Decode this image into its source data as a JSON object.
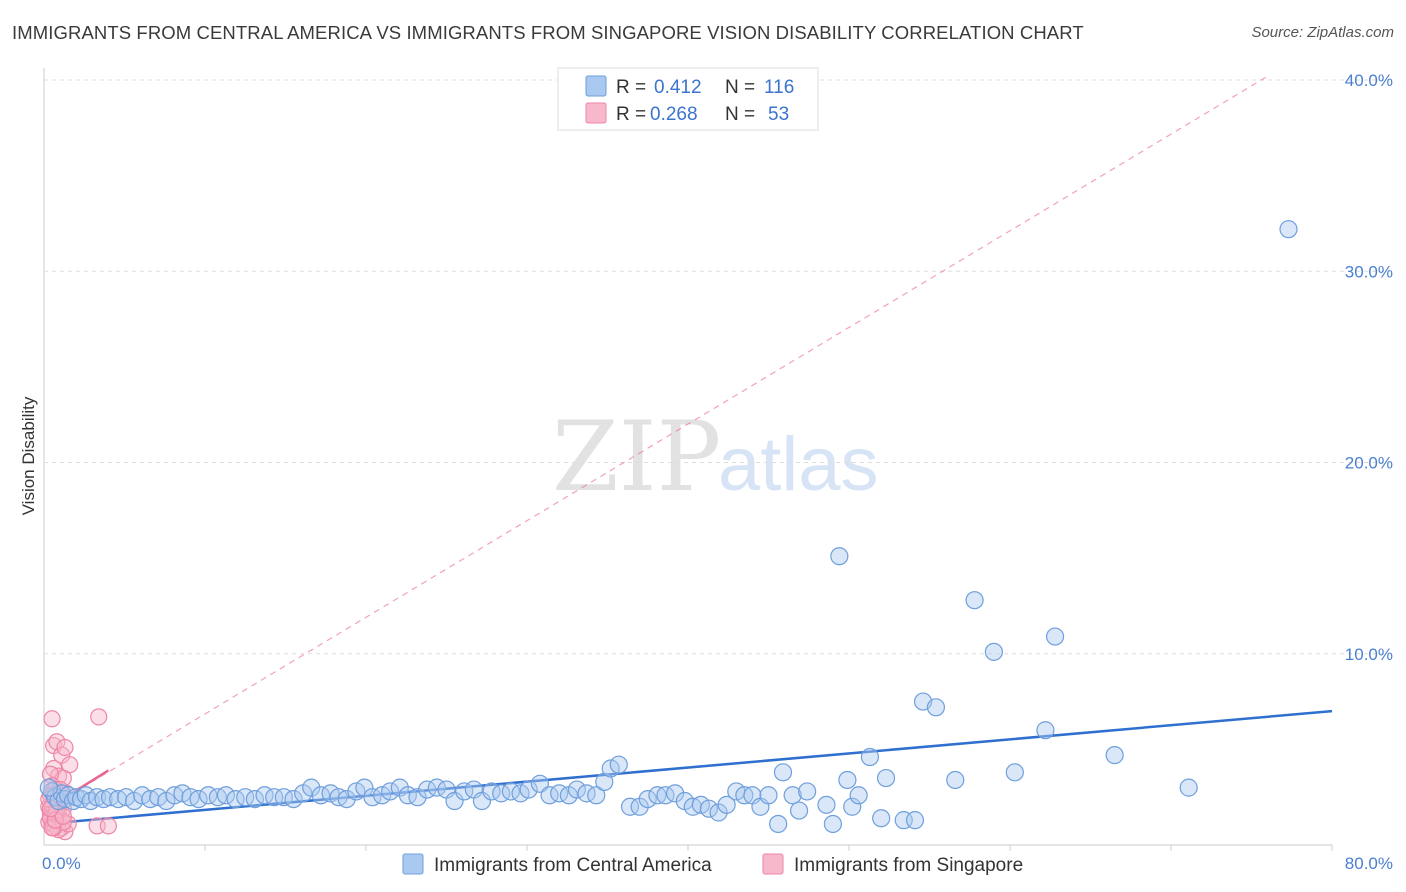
{
  "title": "IMMIGRANTS FROM CENTRAL AMERICA VS IMMIGRANTS FROM SINGAPORE VISION DISABILITY CORRELATION CHART",
  "source": "Source: ZipAtlas.com",
  "watermark": {
    "zip": "ZIP",
    "atlas": "atlas"
  },
  "colors": {
    "blue_fill": "#aac9f0",
    "blue_stroke": "#6f9fdc",
    "blue_line": "#2f6fcf",
    "pink_fill": "#f7b8cc",
    "pink_stroke": "#ee86a6",
    "pink_line": "#e8668e",
    "tick_text": "#4a7fd0",
    "grid": "#dddddd"
  },
  "legend": {
    "r_label": "R =",
    "n_label": "N =",
    "rows": [
      {
        "series": "blue",
        "r": "0.412",
        "n": "116"
      },
      {
        "series": "pink",
        "r": "0.268",
        "n": "53"
      }
    ]
  },
  "chart_data": {
    "type": "scatter",
    "title": "IMMIGRANTS FROM CENTRAL AMERICA VS IMMIGRANTS FROM SINGAPORE VISION DISABILITY CORRELATION CHART",
    "xlabel": "",
    "ylabel": "Vision Disability",
    "xlim": [
      0,
      80
    ],
    "ylim": [
      0,
      40
    ],
    "x_tick_labels": [
      "0.0%",
      "80.0%"
    ],
    "y_ticks": [
      10,
      20,
      30,
      40
    ],
    "y_tick_labels": [
      "10.0%",
      "20.0%",
      "30.0%",
      "40.0%"
    ],
    "grid": true,
    "legend_placement": "top-center",
    "series": [
      {
        "name": "Immigrants from Central America",
        "color": "#aac9f0",
        "trend": {
          "x": [
            0,
            80
          ],
          "y": [
            1.1,
            7.0
          ],
          "style": "solid"
        },
        "points": [
          [
            0.5,
            2.8
          ],
          [
            0.7,
            2.5
          ],
          [
            0.9,
            2.3
          ],
          [
            1.1,
            2.7
          ],
          [
            1.3,
            2.4
          ],
          [
            1.5,
            2.6
          ],
          [
            1.8,
            2.3
          ],
          [
            2.0,
            2.5
          ],
          [
            2.3,
            2.4
          ],
          [
            2.6,
            2.6
          ],
          [
            2.9,
            2.3
          ],
          [
            3.3,
            2.5
          ],
          [
            3.7,
            2.4
          ],
          [
            4.1,
            2.5
          ],
          [
            4.6,
            2.4
          ],
          [
            5.1,
            2.5
          ],
          [
            5.6,
            2.3
          ],
          [
            6.1,
            2.6
          ],
          [
            6.6,
            2.4
          ],
          [
            7.1,
            2.5
          ],
          [
            7.6,
            2.3
          ],
          [
            8.1,
            2.6
          ],
          [
            8.6,
            2.7
          ],
          [
            9.1,
            2.5
          ],
          [
            9.6,
            2.4
          ],
          [
            10.2,
            2.6
          ],
          [
            10.8,
            2.5
          ],
          [
            11.3,
            2.6
          ],
          [
            11.9,
            2.4
          ],
          [
            12.5,
            2.5
          ],
          [
            13.1,
            2.4
          ],
          [
            13.7,
            2.6
          ],
          [
            14.3,
            2.5
          ],
          [
            14.9,
            2.5
          ],
          [
            15.5,
            2.4
          ],
          [
            16.1,
            2.7
          ],
          [
            16.6,
            3.0
          ],
          [
            17.2,
            2.6
          ],
          [
            17.8,
            2.7
          ],
          [
            18.3,
            2.5
          ],
          [
            18.8,
            2.4
          ],
          [
            19.4,
            2.8
          ],
          [
            19.9,
            3.0
          ],
          [
            20.4,
            2.5
          ],
          [
            21.0,
            2.6
          ],
          [
            21.5,
            2.8
          ],
          [
            22.1,
            3.0
          ],
          [
            22.6,
            2.6
          ],
          [
            23.2,
            2.5
          ],
          [
            23.8,
            2.9
          ],
          [
            24.4,
            3.0
          ],
          [
            25.0,
            2.9
          ],
          [
            25.5,
            2.3
          ],
          [
            26.1,
            2.8
          ],
          [
            26.7,
            2.9
          ],
          [
            27.2,
            2.3
          ],
          [
            27.8,
            2.8
          ],
          [
            28.4,
            2.7
          ],
          [
            29.0,
            2.8
          ],
          [
            29.6,
            2.7
          ],
          [
            30.1,
            2.9
          ],
          [
            30.8,
            3.2
          ],
          [
            31.4,
            2.6
          ],
          [
            32.0,
            2.7
          ],
          [
            32.6,
            2.6
          ],
          [
            33.1,
            2.9
          ],
          [
            33.7,
            2.7
          ],
          [
            34.3,
            2.6
          ],
          [
            34.8,
            3.3
          ],
          [
            35.2,
            4.0
          ],
          [
            35.7,
            4.2
          ],
          [
            36.4,
            2.0
          ],
          [
            37.0,
            2.0
          ],
          [
            37.5,
            2.4
          ],
          [
            38.1,
            2.6
          ],
          [
            38.6,
            2.6
          ],
          [
            39.2,
            2.7
          ],
          [
            39.8,
            2.3
          ],
          [
            40.3,
            2.0
          ],
          [
            40.8,
            2.1
          ],
          [
            41.3,
            1.9
          ],
          [
            41.9,
            1.7
          ],
          [
            42.4,
            2.1
          ],
          [
            43.0,
            2.8
          ],
          [
            43.5,
            2.6
          ],
          [
            44.0,
            2.6
          ],
          [
            44.5,
            2.0
          ],
          [
            45.0,
            2.6
          ],
          [
            45.6,
            1.1
          ],
          [
            45.9,
            3.8
          ],
          [
            46.5,
            2.6
          ],
          [
            46.9,
            1.8
          ],
          [
            47.4,
            2.8
          ],
          [
            48.6,
            2.1
          ],
          [
            49.0,
            1.1
          ],
          [
            49.4,
            15.1
          ],
          [
            49.9,
            3.4
          ],
          [
            50.2,
            2.0
          ],
          [
            50.6,
            2.6
          ],
          [
            51.3,
            4.6
          ],
          [
            52.0,
            1.4
          ],
          [
            52.3,
            3.5
          ],
          [
            53.4,
            1.3
          ],
          [
            54.1,
            1.3
          ],
          [
            54.6,
            7.5
          ],
          [
            55.4,
            7.2
          ],
          [
            56.6,
            3.4
          ],
          [
            57.8,
            12.8
          ],
          [
            59.0,
            10.1
          ],
          [
            60.3,
            3.8
          ],
          [
            62.8,
            10.9
          ],
          [
            62.2,
            6.0
          ],
          [
            66.5,
            4.7
          ],
          [
            71.1,
            3.0
          ],
          [
            77.3,
            32.2
          ],
          [
            0.3,
            3.0
          ]
        ]
      },
      {
        "name": "Immigrants from Singapore",
        "color": "#f7b8cc",
        "trend": {
          "x": [
            0,
            4
          ],
          "y": [
            1.8,
            3.9
          ],
          "style": "solid",
          "extended": {
            "x": [
              0,
              76
            ],
            "y": [
              1.8,
              40.2
            ],
            "style": "dashed"
          }
        },
        "points": [
          [
            0.5,
            6.6
          ],
          [
            0.6,
            5.2
          ],
          [
            0.8,
            5.4
          ],
          [
            1.1,
            4.7
          ],
          [
            1.3,
            5.1
          ],
          [
            0.6,
            4.0
          ],
          [
            0.9,
            3.6
          ],
          [
            1.2,
            3.5
          ],
          [
            0.4,
            3.7
          ],
          [
            0.5,
            3.1
          ],
          [
            0.7,
            2.9
          ],
          [
            0.9,
            2.7
          ],
          [
            1.0,
            2.5
          ],
          [
            0.4,
            2.6
          ],
          [
            0.6,
            2.3
          ],
          [
            0.8,
            2.2
          ],
          [
            1.1,
            2.4
          ],
          [
            0.3,
            2.0
          ],
          [
            0.5,
            1.9
          ],
          [
            0.7,
            1.8
          ],
          [
            0.9,
            1.7
          ],
          [
            1.2,
            1.9
          ],
          [
            0.4,
            1.6
          ],
          [
            0.6,
            1.5
          ],
          [
            0.8,
            1.4
          ],
          [
            1.0,
            1.3
          ],
          [
            0.3,
            1.2
          ],
          [
            0.5,
            1.1
          ],
          [
            0.7,
            1.0
          ],
          [
            1.1,
            0.9
          ],
          [
            1.3,
            0.7
          ],
          [
            0.9,
            0.8
          ],
          [
            0.6,
            0.9
          ],
          [
            1.5,
            1.1
          ],
          [
            1.6,
            4.2
          ],
          [
            0.8,
            2.0
          ],
          [
            0.5,
            2.1
          ],
          [
            0.4,
            1.4
          ],
          [
            0.7,
            1.6
          ],
          [
            0.9,
            2.2
          ],
          [
            1.2,
            1.2
          ],
          [
            0.3,
            2.4
          ],
          [
            0.6,
            2.6
          ],
          [
            1.4,
            2.7
          ],
          [
            0.5,
            0.9
          ],
          [
            0.8,
            1.8
          ],
          [
            1.0,
            2.9
          ],
          [
            0.7,
            1.3
          ],
          [
            3.4,
            6.7
          ],
          [
            3.3,
            1.0
          ],
          [
            4.0,
            1.0
          ],
          [
            1.2,
            1.5
          ],
          [
            0.4,
            1.9
          ]
        ]
      }
    ]
  }
}
